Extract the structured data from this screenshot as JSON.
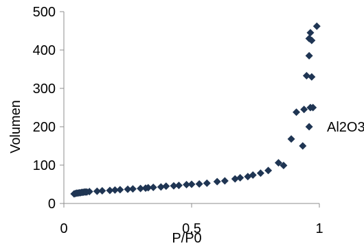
{
  "chart_data": {
    "type": "scatter",
    "xlabel": "P/P0",
    "ylabel": "Volumen",
    "xlim": [
      0,
      1
    ],
    "ylim": [
      0,
      500
    ],
    "x_ticks": [
      0,
      0.5,
      1
    ],
    "x_tick_labels": [
      "0",
      "0,5",
      "1"
    ],
    "y_ticks": [
      0,
      100,
      200,
      300,
      400,
      500
    ],
    "y_tick_labels": [
      "0",
      "100",
      "200",
      "300",
      "400",
      "500"
    ],
    "grid": false,
    "legend_position": "right",
    "marker_color": "#1f3553",
    "series": [
      {
        "name": "Al2O3",
        "x": [
          0.04,
          0.045,
          0.05,
          0.055,
          0.06,
          0.065,
          0.07,
          0.075,
          0.08,
          0.085,
          0.09,
          0.1,
          0.13,
          0.15,
          0.18,
          0.2,
          0.22,
          0.25,
          0.27,
          0.3,
          0.32,
          0.33,
          0.35,
          0.38,
          0.4,
          0.43,
          0.45,
          0.48,
          0.5,
          0.53,
          0.56,
          0.6,
          0.63,
          0.67,
          0.69,
          0.72,
          0.74,
          0.77,
          0.8,
          0.84,
          0.86,
          0.89,
          0.91,
          0.935,
          0.94,
          0.95,
          0.96,
          0.965,
          0.97,
          0.975,
          0.96,
          0.96,
          0.965,
          0.97,
          0.99
        ],
        "y": [
          25,
          26,
          27,
          27,
          28,
          28,
          29,
          29,
          30,
          30,
          30,
          31,
          32,
          33,
          34,
          35,
          36,
          37,
          38,
          39,
          40,
          41,
          42,
          43,
          45,
          46,
          47,
          49,
          50,
          51,
          53,
          57,
          59,
          64,
          67,
          70,
          74,
          79,
          86,
          106,
          99,
          168,
          238,
          150,
          245,
          333,
          200,
          250,
          330,
          250,
          385,
          430,
          445,
          425,
          462
        ]
      }
    ]
  }
}
